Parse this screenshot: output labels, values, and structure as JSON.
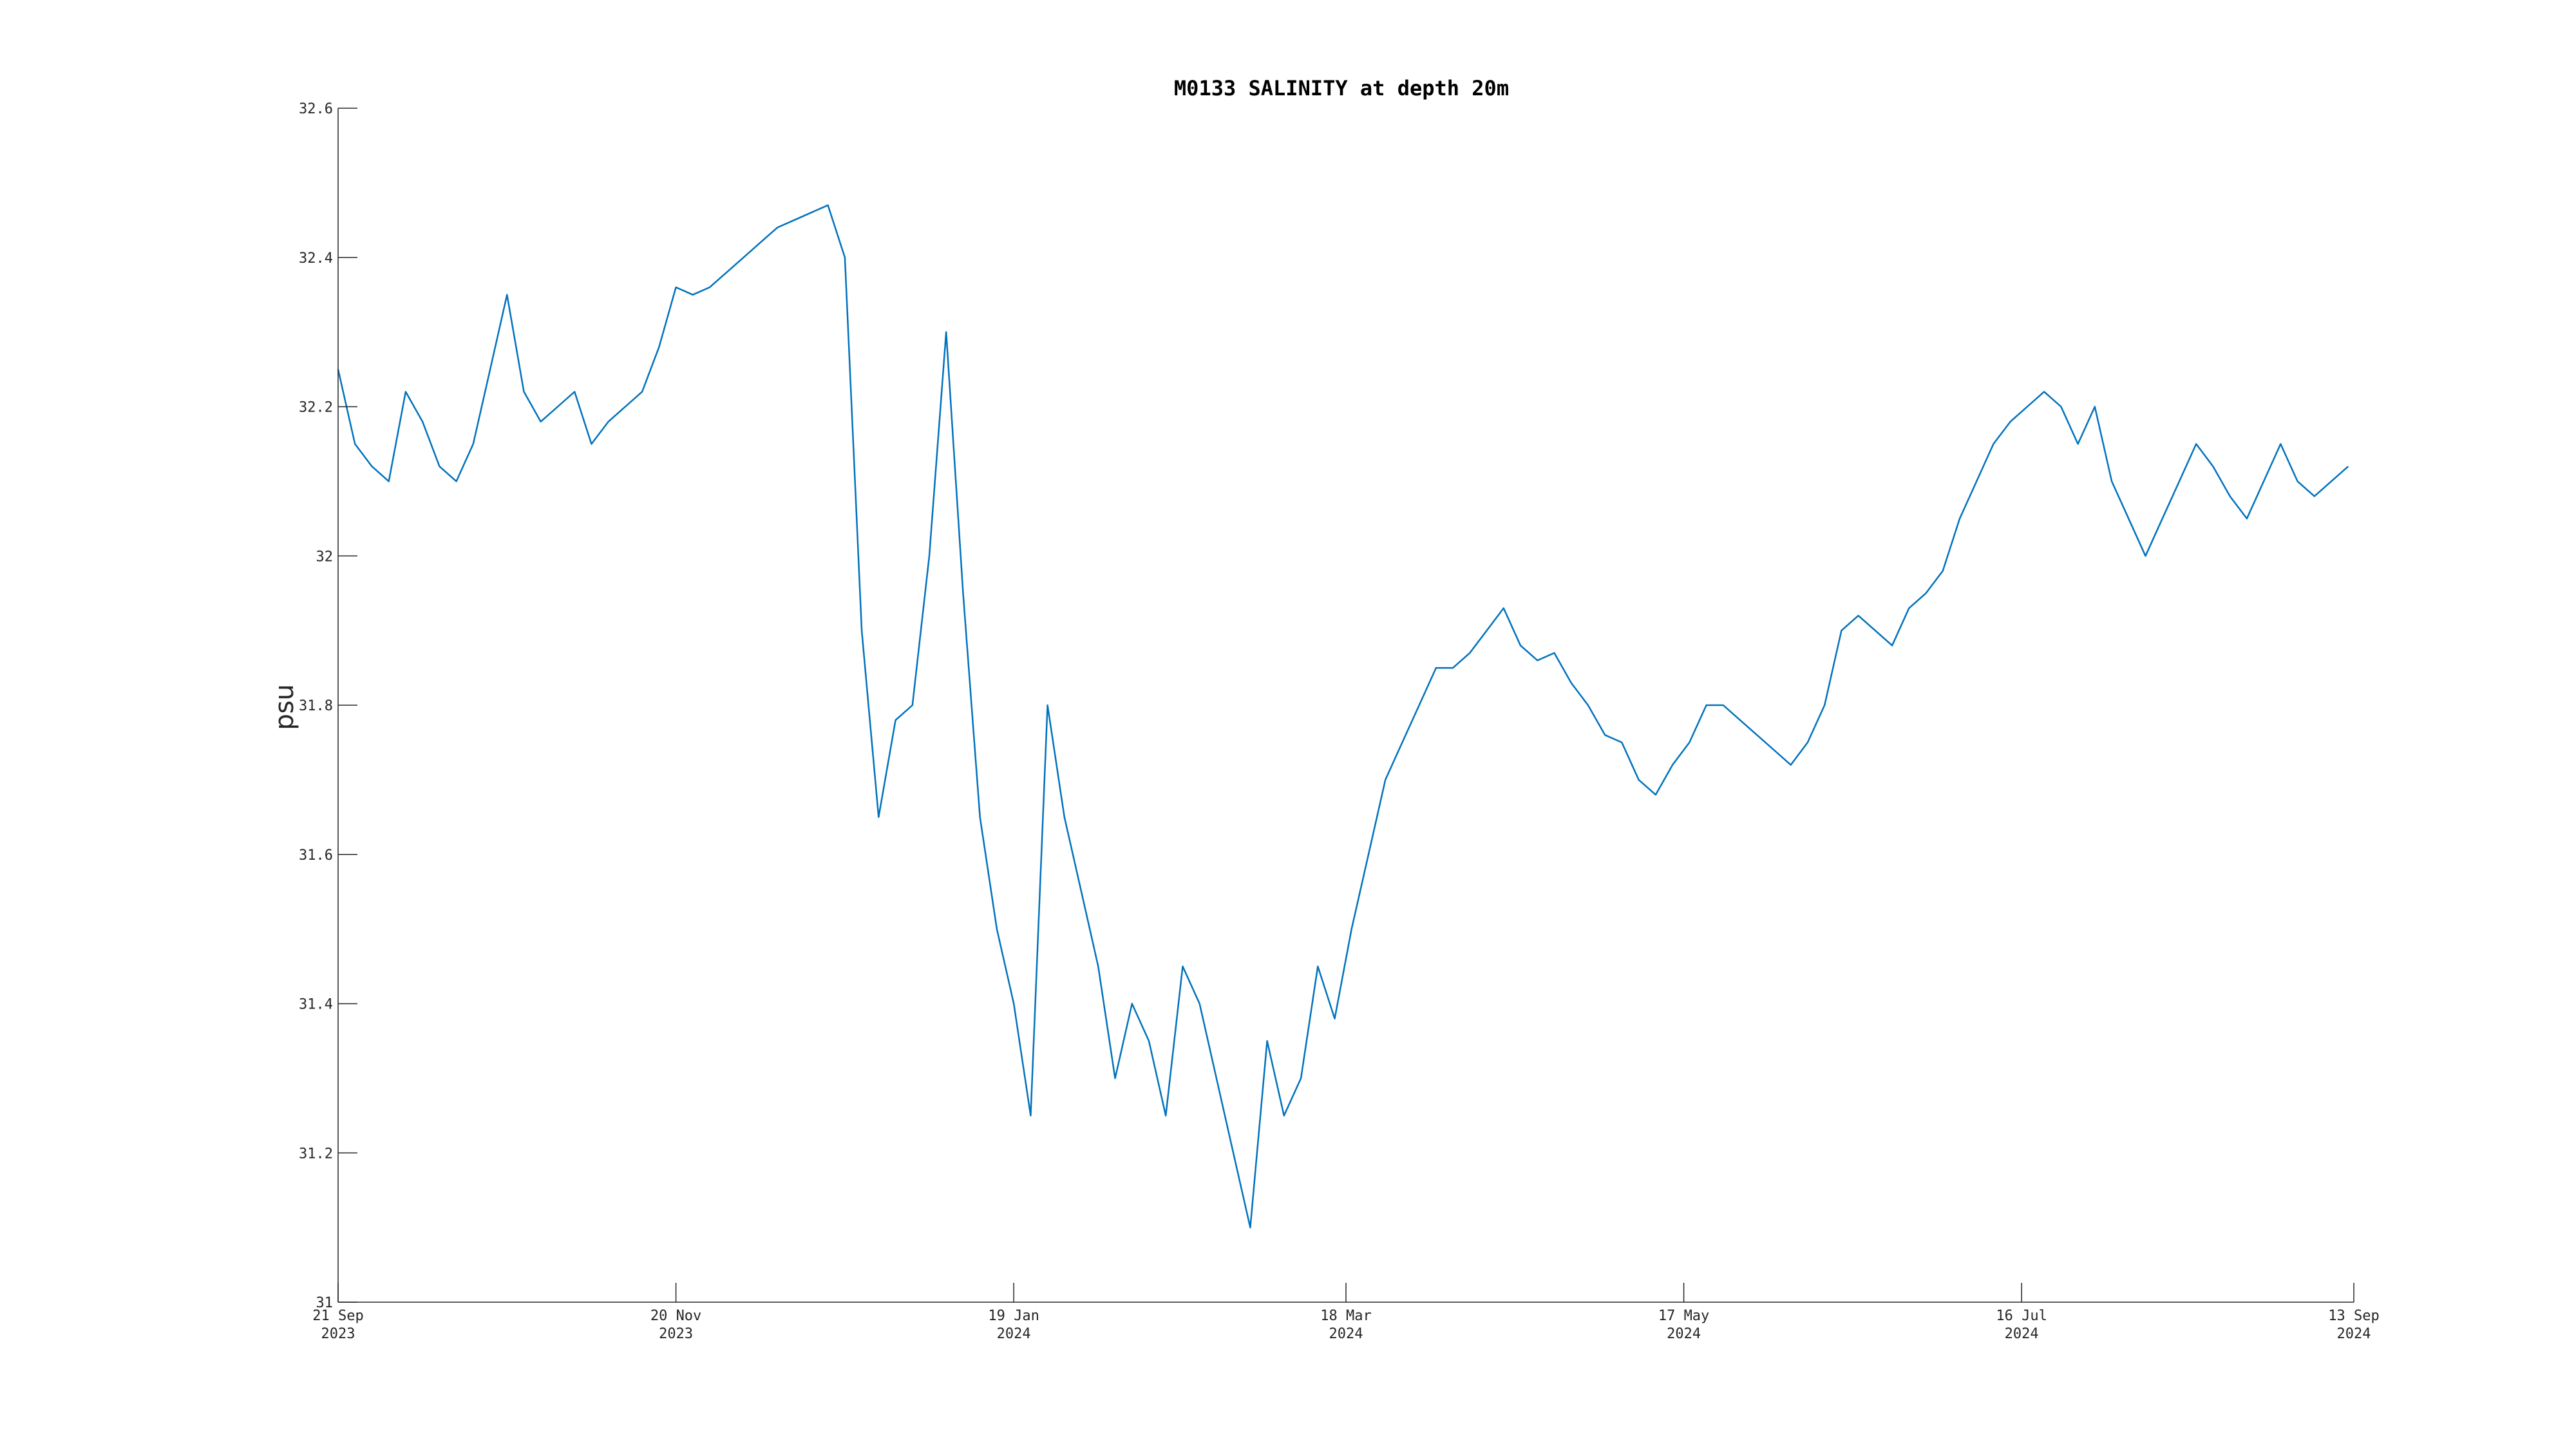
{
  "chart_data": {
    "type": "line",
    "title": "M0133 SALINITY at depth 20m",
    "xlabel": "",
    "ylabel": "psu",
    "ylim": [
      31,
      32.6
    ],
    "xlim": [
      "2023-09-21",
      "2024-09-13"
    ],
    "grid": false,
    "legend": "none",
    "line_color": "#0072BD",
    "y_ticks": [
      "31",
      "31.2",
      "31.4",
      "31.6",
      "31.8",
      "32",
      "32.2",
      "32.4",
      "32.6"
    ],
    "x_ticks": [
      {
        "date": "2023-09-21",
        "line1": "21 Sep",
        "line2": "2023"
      },
      {
        "date": "2023-11-20",
        "line1": "20 Nov",
        "line2": "2023"
      },
      {
        "date": "2024-01-19",
        "line1": "19 Jan",
        "line2": "2024"
      },
      {
        "date": "2024-03-18",
        "line1": "18 Mar",
        "line2": "2024"
      },
      {
        "date": "2024-05-17",
        "line1": "17 May",
        "line2": "2024"
      },
      {
        "date": "2024-07-16",
        "line1": "16 Jul",
        "line2": "2024"
      },
      {
        "date": "2024-09-13",
        "line1": "13 Sep",
        "line2": "2024"
      }
    ],
    "series": [
      {
        "x": [
          "2023-09-21",
          "2023-09-24",
          "2023-09-27",
          "2023-09-30",
          "2023-10-03",
          "2023-10-06",
          "2023-10-09",
          "2023-10-12",
          "2023-10-15",
          "2023-10-18",
          "2023-10-21",
          "2023-10-24",
          "2023-10-27",
          "2023-10-30",
          "2023-11-02",
          "2023-11-05",
          "2023-11-08",
          "2023-11-11",
          "2023-11-14",
          "2023-11-17",
          "2023-11-20",
          "2023-11-23",
          "2023-11-26",
          "2023-11-29",
          "2023-12-02",
          "2023-12-05",
          "2023-12-08",
          "2023-12-11",
          "2023-12-14",
          "2023-12-17",
          "2023-12-20",
          "2023-12-23",
          "2023-12-26",
          "2023-12-29",
          "2024-01-01",
          "2024-01-04",
          "2024-01-07",
          "2024-01-10",
          "2024-01-13",
          "2024-01-16",
          "2024-01-19",
          "2024-01-22",
          "2024-01-25",
          "2024-01-28",
          "2024-01-31",
          "2024-02-03",
          "2024-02-06",
          "2024-02-09",
          "2024-02-12",
          "2024-02-15",
          "2024-02-18",
          "2024-02-21",
          "2024-02-24",
          "2024-02-27",
          "2024-03-01",
          "2024-03-04",
          "2024-03-07",
          "2024-03-10",
          "2024-03-13",
          "2024-03-16",
          "2024-03-19",
          "2024-03-22",
          "2024-03-25",
          "2024-03-28",
          "2024-03-31",
          "2024-04-03",
          "2024-04-06",
          "2024-04-09",
          "2024-04-12",
          "2024-04-15",
          "2024-04-18",
          "2024-04-21",
          "2024-04-24",
          "2024-04-27",
          "2024-04-30",
          "2024-05-03",
          "2024-05-06",
          "2024-05-09",
          "2024-05-12",
          "2024-05-15",
          "2024-05-18",
          "2024-05-21",
          "2024-05-24",
          "2024-05-27",
          "2024-05-30",
          "2024-06-02",
          "2024-06-05",
          "2024-06-08",
          "2024-06-11",
          "2024-06-14",
          "2024-06-17",
          "2024-06-20",
          "2024-06-23",
          "2024-06-26",
          "2024-06-29",
          "2024-07-02",
          "2024-07-05",
          "2024-07-08",
          "2024-07-11",
          "2024-07-14",
          "2024-07-17",
          "2024-07-20",
          "2024-07-23",
          "2024-07-26",
          "2024-07-29",
          "2024-08-01",
          "2024-08-04",
          "2024-08-07",
          "2024-08-10",
          "2024-08-13",
          "2024-08-16",
          "2024-08-19",
          "2024-08-22",
          "2024-08-25",
          "2024-08-28",
          "2024-08-31",
          "2024-09-03",
          "2024-09-06",
          "2024-09-09",
          "2024-09-12"
        ],
        "y": [
          32.25,
          32.15,
          32.12,
          32.1,
          32.22,
          32.18,
          32.12,
          32.1,
          32.15,
          32.25,
          32.35,
          32.22,
          32.18,
          32.2,
          32.22,
          32.15,
          32.18,
          32.2,
          32.22,
          32.28,
          32.36,
          32.35,
          32.36,
          32.38,
          32.4,
          32.42,
          32.44,
          32.45,
          32.46,
          32.47,
          32.4,
          31.9,
          31.65,
          31.78,
          31.8,
          32.0,
          32.3,
          31.95,
          31.65,
          31.5,
          31.4,
          31.25,
          31.8,
          31.65,
          31.55,
          31.45,
          31.3,
          31.4,
          31.35,
          31.25,
          31.45,
          31.4,
          31.3,
          31.2,
          31.1,
          31.35,
          31.25,
          31.3,
          31.45,
          31.38,
          31.5,
          31.6,
          31.7,
          31.75,
          31.8,
          31.85,
          31.85,
          31.87,
          31.9,
          31.93,
          31.88,
          31.86,
          31.87,
          31.83,
          31.8,
          31.76,
          31.75,
          31.7,
          31.68,
          31.72,
          31.75,
          31.8,
          31.8,
          31.78,
          31.76,
          31.74,
          31.72,
          31.75,
          31.8,
          31.9,
          31.92,
          31.9,
          31.88,
          31.93,
          31.95,
          31.98,
          32.05,
          32.1,
          32.15,
          32.18,
          32.2,
          32.22,
          32.2,
          32.15,
          32.2,
          32.1,
          32.05,
          32.0,
          32.05,
          32.1,
          32.15,
          32.12,
          32.08,
          32.05,
          32.1,
          32.15,
          32.1,
          32.08,
          32.1,
          32.12
        ]
      }
    ]
  }
}
